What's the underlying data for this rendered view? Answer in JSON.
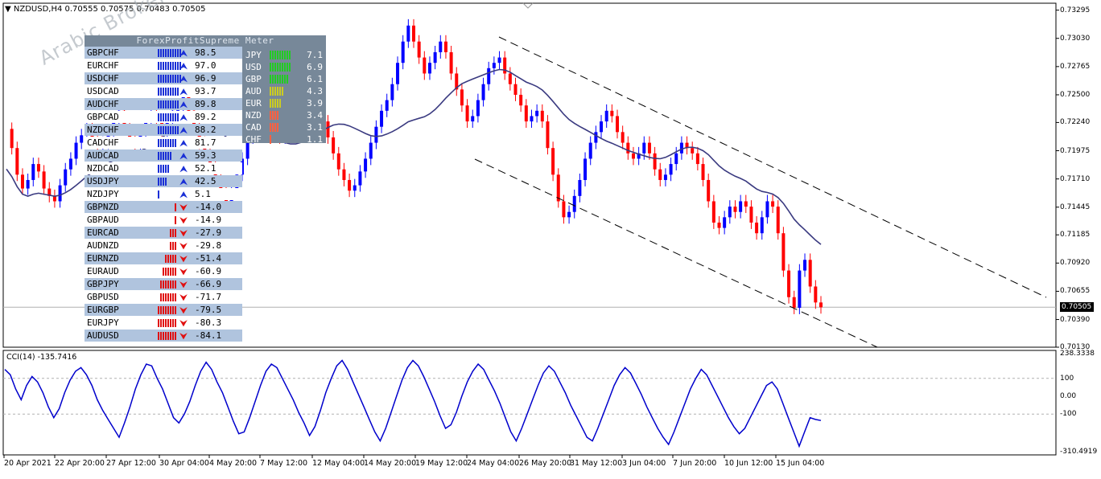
{
  "symbol_title": "NZDUSD,H4  0.70555 0.70575 0.70483 0.70505",
  "meter": {
    "title": "ForexProfitSupreme Meter",
    "pairs": [
      {
        "name": "GBPCHF",
        "value": "98.5",
        "strength": 98.5
      },
      {
        "name": "EURCHF",
        "value": "97.0",
        "strength": 97.0
      },
      {
        "name": "USDCHF",
        "value": "96.9",
        "strength": 96.9
      },
      {
        "name": "USDCAD",
        "value": "93.7",
        "strength": 93.7
      },
      {
        "name": "AUDCHF",
        "value": "89.8",
        "strength": 89.8
      },
      {
        "name": "GBPCAD",
        "value": "89.2",
        "strength": 89.2
      },
      {
        "name": "NZDCHF",
        "value": "88.2",
        "strength": 88.2
      },
      {
        "name": "CADCHF",
        "value": "81.7",
        "strength": 81.7
      },
      {
        "name": "AUDCAD",
        "value": "59.3",
        "strength": 59.3
      },
      {
        "name": "NZDCAD",
        "value": "52.1",
        "strength": 52.1
      },
      {
        "name": "USDJPY",
        "value": "42.5",
        "strength": 42.5
      },
      {
        "name": "NZDJPY",
        "value": "5.1",
        "strength": 5.1
      },
      {
        "name": "GBPNZD",
        "value": "-14.0",
        "strength": -14.0
      },
      {
        "name": "GBPAUD",
        "value": "-14.9",
        "strength": -14.9
      },
      {
        "name": "EURCAD",
        "value": "-27.9",
        "strength": -27.9
      },
      {
        "name": "AUDNZD",
        "value": "-29.8",
        "strength": -29.8
      },
      {
        "name": "EURNZD",
        "value": "-51.4",
        "strength": -51.4
      },
      {
        "name": "EURAUD",
        "value": "-60.9",
        "strength": -60.9
      },
      {
        "name": "GBPJPY",
        "value": "-66.9",
        "strength": -66.9
      },
      {
        "name": "GBPUSD",
        "value": "-71.7",
        "strength": -71.7
      },
      {
        "name": "EURGBP",
        "value": "-79.5",
        "strength": -79.5
      },
      {
        "name": "EURJPY",
        "value": "-80.3",
        "strength": -80.3
      },
      {
        "name": "AUDUSD",
        "value": "-84.1",
        "strength": -84.1
      }
    ],
    "currencies": [
      {
        "name": "JPY",
        "value": "7.1",
        "strength": 7.1
      },
      {
        "name": "USD",
        "value": "6.9",
        "strength": 6.9
      },
      {
        "name": "GBP",
        "value": "6.1",
        "strength": 6.1
      },
      {
        "name": "AUD",
        "value": "4.3",
        "strength": 4.3
      },
      {
        "name": "EUR",
        "value": "3.9",
        "strength": 3.9
      },
      {
        "name": "NZD",
        "value": "3.4",
        "strength": 3.4
      },
      {
        "name": "CAD",
        "value": "3.1",
        "strength": 3.1
      },
      {
        "name": "CHF",
        "value": "1.1",
        "strength": 1.1
      }
    ],
    "colors": {
      "up": "#1a2fd6",
      "down": "#e01010",
      "strong": "#22cc22",
      "mid": "#cccc22",
      "weak": "#ff6040"
    }
  },
  "watermark": "Arabic Broker",
  "cci_label": "CCI(14) -135.7416",
  "colors": {
    "bull": "#0000ff",
    "bear": "#ff0000",
    "ma": "#3a3a80",
    "cci": "#0000cc"
  },
  "chart_data": [
    {
      "type": "line",
      "title": "NZDUSD,H4",
      "price_axis_labels": [
        "0.73295",
        "0.73030",
        "0.72765",
        "0.72500",
        "0.72240",
        "0.71975",
        "0.71710",
        "0.71445",
        "0.71185",
        "0.70920",
        "0.70655",
        "0.70390",
        "0.70130"
      ],
      "current_price": "0.70505",
      "ylim": [
        0.7013,
        0.7336
      ],
      "x_labels": [
        "20 Apr 2021",
        "22 Apr 20:00",
        "27 Apr 12:00",
        "30 Apr 04:00",
        "4 May 20:00",
        "7 May 12:00",
        "12 May 04:00",
        "14 May 20:00",
        "19 May 12:00",
        "24 May 04:00",
        "26 May 20:00",
        "31 May 12:00",
        "3 Jun 04:00",
        "7 Jun 20:00",
        "10 Jun 12:00",
        "15 Jun 04:00"
      ],
      "series": [
        {
          "values": [
            0.7218,
            0.72,
            0.7175,
            0.7162,
            0.717,
            0.7185,
            0.7178,
            0.7162,
            0.7155,
            0.715,
            0.7165,
            0.718,
            0.719,
            0.7205,
            0.7212,
            0.722,
            0.721,
            0.72,
            0.7205,
            0.7215,
            0.7225,
            0.7235,
            0.722,
            0.721,
            0.72,
            0.7212,
            0.7225,
            0.723,
            0.7228,
            0.7215,
            0.7225,
            0.7235,
            0.724,
            0.725,
            0.7235,
            0.722,
            0.7205,
            0.7195,
            0.7185,
            0.717,
            0.716,
            0.715,
            0.7162,
            0.7175,
            0.719,
            0.721,
            0.7225,
            0.724,
            0.7245,
            0.7235,
            0.7225,
            0.721,
            0.7215,
            0.7225,
            0.7235,
            0.725,
            0.7265,
            0.7255,
            0.724,
            0.7225,
            0.721,
            0.7195,
            0.718,
            0.717,
            0.716,
            0.7165,
            0.7178,
            0.719,
            0.7205,
            0.722,
            0.7235,
            0.7245,
            0.726,
            0.728,
            0.73,
            0.7315,
            0.73,
            0.7285,
            0.727,
            0.728,
            0.729,
            0.73,
            0.729,
            0.727,
            0.7255,
            0.724,
            0.7225,
            0.723,
            0.7245,
            0.726,
            0.7275,
            0.728,
            0.7285,
            0.727,
            0.726,
            0.725,
            0.724,
            0.7225,
            0.723,
            0.7235,
            0.7225,
            0.72,
            0.7175,
            0.715,
            0.7135,
            0.714,
            0.7155,
            0.717,
            0.719,
            0.7205,
            0.7215,
            0.7225,
            0.7235,
            0.723,
            0.7215,
            0.7205,
            0.7195,
            0.719,
            0.7195,
            0.7205,
            0.7195,
            0.718,
            0.717,
            0.7175,
            0.7185,
            0.7195,
            0.7205,
            0.72,
            0.7195,
            0.7185,
            0.717,
            0.715,
            0.713,
            0.7125,
            0.7135,
            0.7145,
            0.714,
            0.715,
            0.7145,
            0.713,
            0.712,
            0.7135,
            0.715,
            0.7145,
            0.712,
            0.7085,
            0.706,
            0.705,
            0.7085,
            0.7095,
            0.707,
            0.7055,
            0.70505
          ],
          "name": ""
        }
      ]
    },
    {
      "type": "line",
      "title": "CCI(14) -135.7416",
      "y_axis_labels": [
        "238.3338",
        "100",
        "0.00",
        "-100",
        "-310.4919"
      ],
      "ylim": [
        -310.4919,
        238.3338
      ],
      "series": [
        {
          "values": [
            150,
            120,
            40,
            -20,
            60,
            110,
            80,
            20,
            -60,
            -120,
            -70,
            20,
            90,
            140,
            160,
            120,
            60,
            -20,
            -80,
            -130,
            -180,
            -230,
            -150,
            -60,
            40,
            120,
            180,
            170,
            100,
            40,
            -40,
            -120,
            -150,
            -100,
            -30,
            60,
            140,
            190,
            150,
            80,
            20,
            -60,
            -140,
            -210,
            -200,
            -120,
            -30,
            60,
            140,
            180,
            160,
            100,
            40,
            -20,
            -90,
            -150,
            -220,
            -170,
            -80,
            20,
            100,
            170,
            200,
            150,
            80,
            10,
            -60,
            -130,
            -200,
            -250,
            -180,
            -90,
            0,
            90,
            160,
            200,
            170,
            110,
            40,
            -30,
            -110,
            -180,
            -160,
            -90,
            0,
            80,
            140,
            180,
            150,
            90,
            30,
            -40,
            -120,
            -200,
            -250,
            -180,
            -100,
            -20,
            60,
            130,
            170,
            140,
            80,
            20,
            -50,
            -110,
            -170,
            -230,
            -250,
            -180,
            -100,
            -20,
            60,
            120,
            160,
            130,
            70,
            10,
            -60,
            -120,
            -180,
            -230,
            -270,
            -200,
            -120,
            -40,
            40,
            100,
            150,
            120,
            60,
            0,
            -60,
            -120,
            -170,
            -210,
            -180,
            -120,
            -60,
            0,
            60,
            80,
            40,
            -40,
            -120,
            -200,
            -280,
            -200,
            -120,
            -130,
            -135.74
          ],
          "name": ""
        }
      ]
    }
  ]
}
